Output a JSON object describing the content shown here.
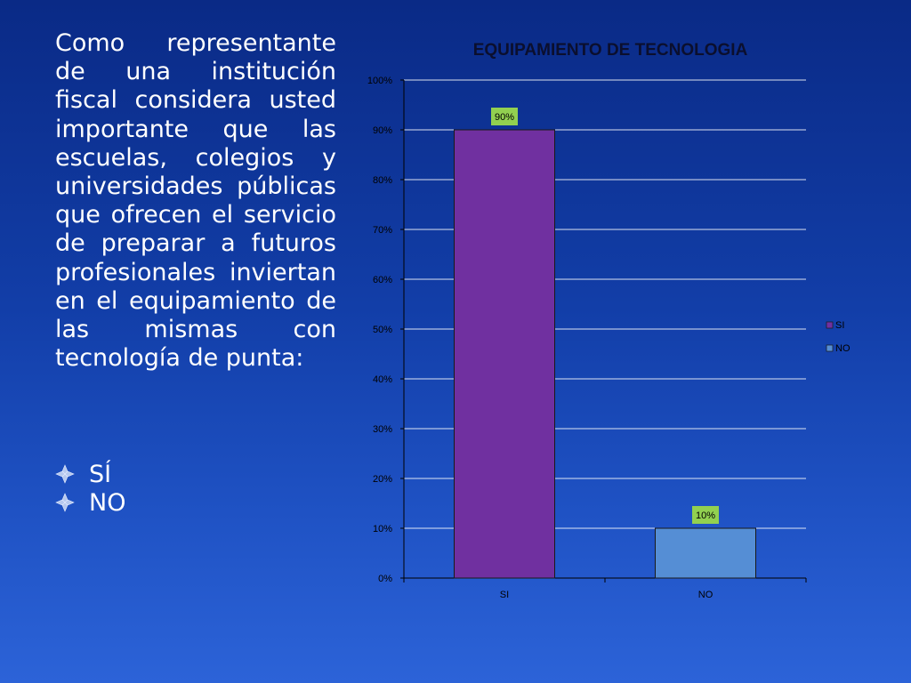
{
  "question": "Como representante de una institución fiscal considera usted importante que las escuelas, colegios y universidades públicas que ofrecen el servicio de preparar a futuros profesionales inviertan en el equipamiento de las mismas con tecnología de punta:",
  "options": [
    {
      "label": "SÍ"
    },
    {
      "label": "NO"
    }
  ],
  "colors": {
    "si": "#7030a0",
    "no": "#558ed5",
    "data_label_bg": "#92d050",
    "gridline": "#ffffff"
  },
  "chart_data": {
    "type": "bar",
    "title": "EQUIPAMIENTO DE TECNOLOGIA",
    "categories": [
      "SI",
      "NO"
    ],
    "values": [
      90,
      10
    ],
    "data_labels": [
      "90%",
      "10%"
    ],
    "ylim": [
      0,
      100
    ],
    "yticks": [
      "0%",
      "10%",
      "20%",
      "30%",
      "40%",
      "50%",
      "60%",
      "70%",
      "80%",
      "90%",
      "100%"
    ],
    "legend": [
      "SI",
      "NO"
    ],
    "legend_position": "right",
    "grid": true
  }
}
